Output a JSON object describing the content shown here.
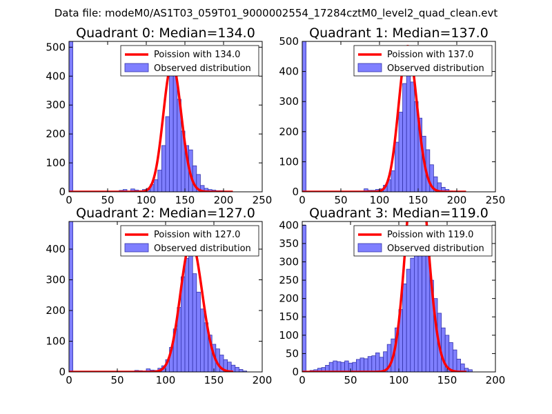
{
  "suptitle": "Data file: modeM0/AS1T03_059T01_9000002554_17284cztM0_level2_quad_clean.evt",
  "colors": {
    "bar": "#7f7fff",
    "bar_edge": "#3333aa",
    "curve": "#ff0000",
    "axes": "#000000"
  },
  "chart_data": [
    {
      "type": "bar",
      "title": "Quadrant 0: Median=134.0",
      "xlim": [
        0,
        250
      ],
      "ylim": [
        0,
        520
      ],
      "xticks": [
        0,
        50,
        100,
        150,
        200,
        250
      ],
      "yticks": [
        0,
        100,
        200,
        300,
        400,
        500
      ],
      "bin_width": 5,
      "bins": [
        [
          0,
          520
        ],
        [
          65,
          5
        ],
        [
          70,
          8
        ],
        [
          75,
          2
        ],
        [
          80,
          10
        ],
        [
          85,
          6
        ],
        [
          90,
          4
        ],
        [
          95,
          8
        ],
        [
          100,
          12
        ],
        [
          105,
          25
        ],
        [
          110,
          42
        ],
        [
          115,
          75
        ],
        [
          120,
          160
        ],
        [
          125,
          260
        ],
        [
          130,
          470
        ],
        [
          135,
          450
        ],
        [
          140,
          320
        ],
        [
          145,
          210
        ],
        [
          150,
          160
        ],
        [
          155,
          145
        ],
        [
          160,
          90
        ],
        [
          165,
          60
        ],
        [
          170,
          22
        ],
        [
          175,
          12
        ],
        [
          180,
          8
        ],
        [
          185,
          6
        ],
        [
          190,
          4
        ],
        [
          195,
          4
        ]
      ],
      "poisson_mean": 134.0,
      "legend": [
        "Poission with 134.0",
        "Observed distribution"
      ]
    },
    {
      "type": "bar",
      "title": "Quadrant 1: Median=137.0",
      "xlim": [
        0,
        250
      ],
      "ylim": [
        0,
        500
      ],
      "xticks": [
        0,
        50,
        100,
        150,
        200,
        250
      ],
      "yticks": [
        0,
        100,
        200,
        300,
        400,
        500
      ],
      "bin_width": 5,
      "bins": [
        [
          0,
          500
        ],
        [
          75,
          2
        ],
        [
          80,
          10
        ],
        [
          85,
          5
        ],
        [
          90,
          5
        ],
        [
          95,
          8
        ],
        [
          100,
          10
        ],
        [
          105,
          22
        ],
        [
          110,
          40
        ],
        [
          115,
          70
        ],
        [
          120,
          165
        ],
        [
          125,
          265
        ],
        [
          130,
          360
        ],
        [
          135,
          450
        ],
        [
          140,
          365
        ],
        [
          145,
          300
        ],
        [
          150,
          245
        ],
        [
          155,
          185
        ],
        [
          160,
          140
        ],
        [
          165,
          90
        ],
        [
          170,
          50
        ],
        [
          175,
          30
        ],
        [
          180,
          15
        ],
        [
          185,
          8
        ],
        [
          190,
          3
        ]
      ],
      "poisson_mean": 137.0,
      "legend": [
        "Poission with 137.0",
        "Observed distribution"
      ]
    },
    {
      "type": "bar",
      "title": "Quadrant 2: Median=127.0",
      "xlim": [
        0,
        200
      ],
      "ylim": [
        0,
        490
      ],
      "xticks": [
        0,
        50,
        100,
        150,
        200
      ],
      "yticks": [
        0,
        100,
        200,
        300,
        400
      ],
      "bin_width": 4,
      "bins": [
        [
          0,
          490
        ],
        [
          68,
          5
        ],
        [
          72,
          4
        ],
        [
          76,
          3
        ],
        [
          80,
          10
        ],
        [
          84,
          6
        ],
        [
          88,
          5
        ],
        [
          92,
          12
        ],
        [
          96,
          20
        ],
        [
          100,
          40
        ],
        [
          104,
          80
        ],
        [
          108,
          140
        ],
        [
          112,
          210
        ],
        [
          116,
          310
        ],
        [
          120,
          370
        ],
        [
          124,
          380
        ],
        [
          128,
          320
        ],
        [
          132,
          260
        ],
        [
          136,
          205
        ],
        [
          140,
          160
        ],
        [
          144,
          120
        ],
        [
          148,
          90
        ],
        [
          152,
          75
        ],
        [
          156,
          55
        ],
        [
          160,
          40
        ],
        [
          164,
          32
        ],
        [
          168,
          22
        ],
        [
          172,
          15
        ],
        [
          176,
          8
        ],
        [
          180,
          3
        ]
      ],
      "poisson_mean": 127.0,
      "legend": [
        "Poission with 127.0",
        "Observed distribution"
      ]
    },
    {
      "type": "bar",
      "title": "Quadrant 3: Median=119.0",
      "xlim": [
        0,
        200
      ],
      "ylim": [
        0,
        410
      ],
      "xticks": [
        0,
        50,
        100,
        150,
        200
      ],
      "yticks": [
        0,
        50,
        100,
        150,
        200,
        250,
        300,
        350,
        400
      ],
      "bin_width": 4,
      "bins": [
        [
          0,
          400
        ],
        [
          4,
          2
        ],
        [
          8,
          4
        ],
        [
          12,
          6
        ],
        [
          16,
          10
        ],
        [
          20,
          12
        ],
        [
          24,
          18
        ],
        [
          28,
          26
        ],
        [
          32,
          30
        ],
        [
          36,
          28
        ],
        [
          40,
          26
        ],
        [
          44,
          30
        ],
        [
          48,
          24
        ],
        [
          52,
          26
        ],
        [
          56,
          34
        ],
        [
          60,
          38
        ],
        [
          64,
          36
        ],
        [
          68,
          42
        ],
        [
          72,
          44
        ],
        [
          76,
          52
        ],
        [
          80,
          40
        ],
        [
          84,
          55
        ],
        [
          88,
          75
        ],
        [
          92,
          90
        ],
        [
          96,
          120
        ],
        [
          100,
          170
        ],
        [
          104,
          240
        ],
        [
          108,
          280
        ],
        [
          112,
          310
        ],
        [
          116,
          345
        ],
        [
          120,
          330
        ],
        [
          124,
          350
        ],
        [
          128,
          330
        ],
        [
          132,
          250
        ],
        [
          136,
          200
        ],
        [
          140,
          160
        ],
        [
          144,
          120
        ],
        [
          148,
          100
        ],
        [
          152,
          80
        ],
        [
          156,
          60
        ],
        [
          160,
          35
        ],
        [
          164,
          22
        ],
        [
          168,
          10
        ],
        [
          172,
          6
        ]
      ],
      "poisson_mean": 119.0,
      "legend": [
        "Poission with 119.0",
        "Observed distribution"
      ]
    }
  ]
}
